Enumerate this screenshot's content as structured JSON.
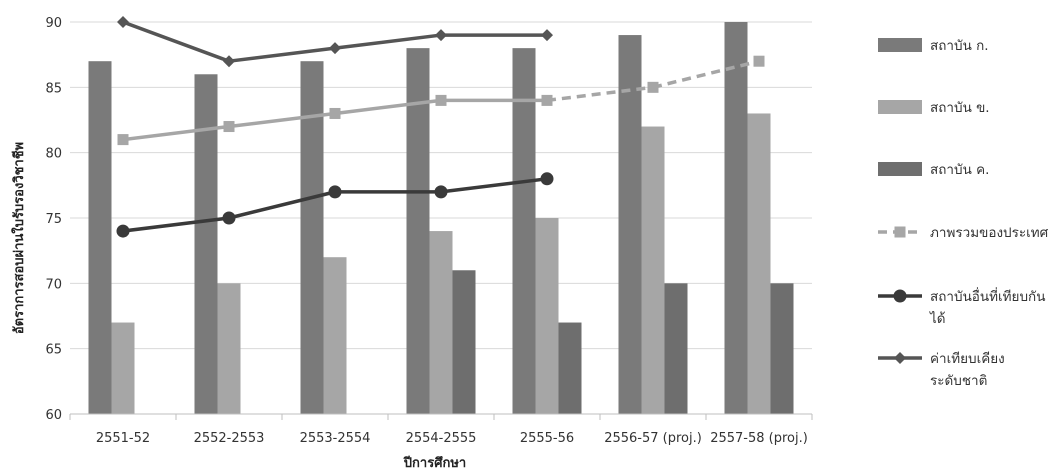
{
  "chart_data": {
    "type": "bar",
    "categories": [
      "2551-52",
      "2552-2553",
      "2553-2554",
      "2554-2555",
      "2555-56",
      "2556-57 (proj.)",
      "2557-58 (proj.)"
    ],
    "xlabel": "ปีการศึกษา",
    "ylabel": "อัตราการสอบผ่านใบรับรองวิชาชีพ",
    "ylim": [
      60,
      90
    ],
    "yticks": [
      60,
      65,
      70,
      75,
      80,
      85,
      90
    ],
    "grid": true,
    "legend_position": "right",
    "bar_series": [
      {
        "name": "สถาบัน ก.",
        "color": "#7a7a7a",
        "values": [
          87,
          86,
          87,
          88,
          88,
          89,
          90
        ]
      },
      {
        "name": "สถาบัน ข.",
        "color": "#a6a6a6",
        "values": [
          67,
          70,
          72,
          74,
          75,
          82,
          83
        ]
      },
      {
        "name": "สถาบัน ค.",
        "color": "#6e6e6e",
        "values": [
          null,
          null,
          null,
          71,
          67,
          70,
          70
        ]
      }
    ],
    "line_series": [
      {
        "name": "ภาพรวมของประเทศ",
        "color": "#a6a6a6",
        "marker": "square",
        "dashed_after_index": 4,
        "values": [
          81,
          82,
          83,
          84,
          84,
          85,
          87
        ]
      },
      {
        "name": "สถาบันอื่นที่เทียบกันได้",
        "color": "#3a3a3a",
        "marker": "circle",
        "values": [
          74,
          75,
          77,
          77,
          78,
          null,
          null
        ]
      },
      {
        "name": "ค่าเทียบเคียงระดับชาติ",
        "color": "#555555",
        "marker": "diamond",
        "values": [
          90,
          87,
          88,
          89,
          89,
          null,
          null
        ]
      }
    ],
    "legend": [
      {
        "label": "สถาบัน ก."
      },
      {
        "label": "สถาบัน ข."
      },
      {
        "label": "สถาบัน ค."
      },
      {
        "label": "ภาพรวมของประเทศ"
      },
      {
        "label": "สถาบันอื่นที่เทียบกัน",
        "label2": "ได้"
      },
      {
        "label": "ค่าเทียบเคียง",
        "label2": "ระดับชาติ"
      }
    ]
  }
}
